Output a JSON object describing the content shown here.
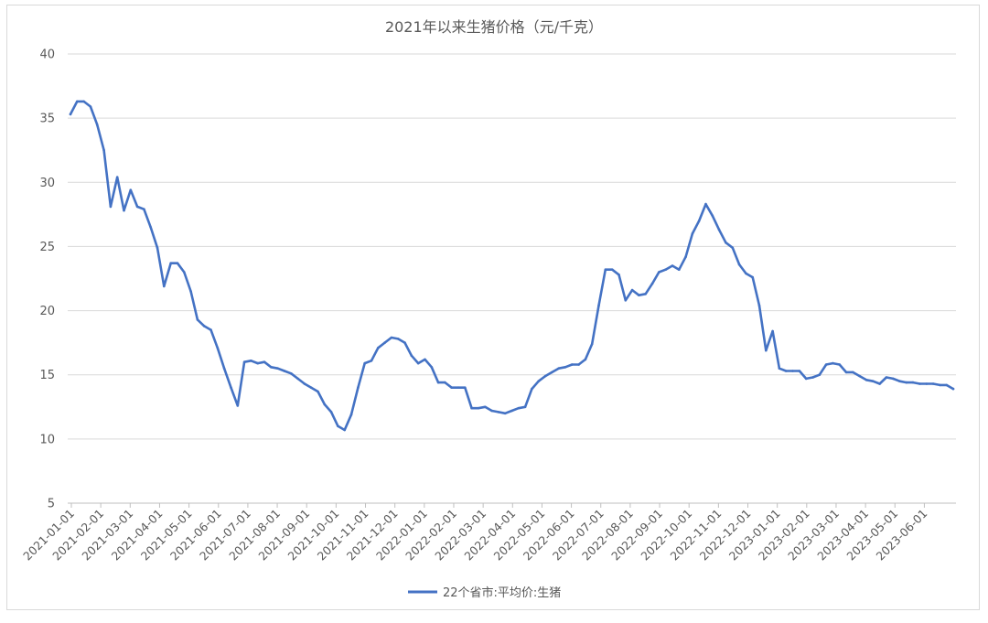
{
  "chart_data": {
    "type": "line",
    "title": "2021年以来生猪价格（元/千克）",
    "xlabel": "",
    "ylabel": "",
    "ylim": [
      5,
      40
    ],
    "yticks": [
      5,
      10,
      15,
      20,
      25,
      30,
      35,
      40
    ],
    "grid": true,
    "legend_position": "bottom",
    "color": "#4472c4",
    "xtick_labels": [
      "2021-01-01",
      "2021-02-01",
      "2021-03-01",
      "2021-04-01",
      "2021-05-01",
      "2021-06-01",
      "2021-07-01",
      "2021-08-01",
      "2021-09-01",
      "2021-10-01",
      "2021-11-01",
      "2021-12-01",
      "2022-01-01",
      "2022-02-01",
      "2022-03-01",
      "2022-04-01",
      "2022-05-01",
      "2022-06-01",
      "2022-07-01",
      "2022-08-01",
      "2022-09-01",
      "2022-10-01",
      "2022-11-01",
      "2022-12-01",
      "2023-01-01",
      "2023-02-01",
      "2023-03-01",
      "2023-04-01",
      "2023-05-01",
      "2023-06-01"
    ],
    "series": [
      {
        "name": "22个省市:平均价:生猪",
        "values": [
          35.3,
          36.3,
          36.3,
          35.9,
          34.5,
          32.5,
          28.1,
          30.4,
          27.8,
          29.4,
          28.1,
          27.9,
          26.5,
          24.9,
          21.9,
          23.7,
          23.7,
          23.0,
          21.5,
          19.3,
          18.8,
          18.5,
          17.1,
          15.5,
          14.0,
          12.6,
          16.0,
          16.1,
          15.9,
          16.0,
          15.6,
          15.5,
          15.3,
          15.1,
          14.7,
          14.3,
          14.0,
          13.7,
          12.7,
          12.1,
          11.0,
          10.7,
          11.9,
          14.0,
          15.9,
          16.1,
          17.1,
          17.5,
          17.9,
          17.8,
          17.5,
          16.5,
          15.9,
          16.2,
          15.6,
          14.4,
          14.4,
          14.0,
          14.0,
          14.0,
          12.4,
          12.4,
          12.5,
          12.2,
          12.1,
          12.0,
          12.2,
          12.4,
          12.5,
          13.9,
          14.5,
          14.9,
          15.2,
          15.5,
          15.6,
          15.8,
          15.8,
          16.2,
          17.4,
          20.4,
          23.2,
          23.2,
          22.8,
          20.8,
          21.6,
          21.2,
          21.3,
          22.1,
          23.0,
          23.2,
          23.5,
          23.2,
          24.2,
          26.0,
          27.0,
          28.3,
          27.4,
          26.3,
          25.3,
          24.9,
          23.6,
          22.9,
          22.6,
          20.4,
          16.9,
          18.4,
          15.5,
          15.3,
          15.3,
          15.3,
          14.7,
          14.8,
          15.0,
          15.8,
          15.9,
          15.8,
          15.2,
          15.2,
          14.9,
          14.6,
          14.5,
          14.3,
          14.8,
          14.7,
          14.5,
          14.4,
          14.4,
          14.3,
          14.3,
          14.3,
          14.2,
          14.2,
          13.9
        ]
      }
    ]
  }
}
